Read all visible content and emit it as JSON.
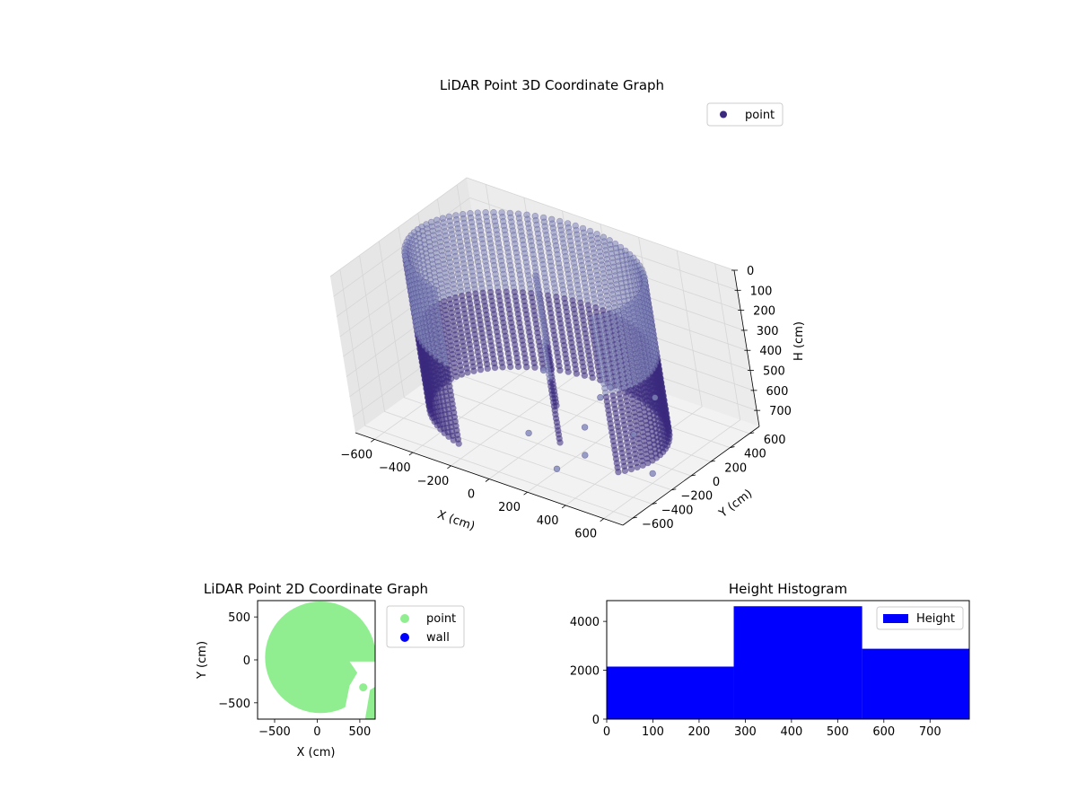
{
  "colors": {
    "point3d": "#3b2a7e",
    "point3d_light": "#7f86b8",
    "point2d": "#90ee90",
    "wall": "#0000ff",
    "hist": "#0000ff",
    "pane": "#f2f2f2",
    "grid": "#d6d6d6"
  },
  "chart_data": [
    {
      "id": "lidar3d",
      "type": "scatter",
      "title": "LiDAR Point 3D Coordinate Graph",
      "xlabel": "X (cm)",
      "ylabel": "Y (cm)",
      "zlabel": "H (cm)",
      "legend": {
        "entries": [
          "point"
        ],
        "placement": "top-right"
      },
      "xlim": [
        -700,
        700
      ],
      "ylim": [
        -700,
        700
      ],
      "zlim": [
        0,
        780
      ],
      "z_inverted": true,
      "xticks": [
        "−600",
        "−400",
        "−200",
        "0",
        "200",
        "400",
        "600"
      ],
      "yticks": [
        "−600",
        "−400",
        "−200",
        "0",
        "200",
        "400",
        "600"
      ],
      "zticks": [
        "0",
        "100",
        "200",
        "300",
        "400",
        "500",
        "600",
        "700"
      ],
      "xtick_values": [
        -600,
        -400,
        -200,
        0,
        200,
        400,
        600
      ],
      "ytick_values": [
        -600,
        -400,
        -200,
        0,
        200,
        400,
        600
      ],
      "ztick_values": [
        0,
        100,
        200,
        300,
        400,
        500,
        600,
        700
      ],
      "shape": {
        "wall_radius": 560,
        "wall_center": [
          -60,
          40
        ],
        "wall_gap_angles_deg": [
          250,
          330
        ],
        "height_range": [
          0,
          780
        ]
      },
      "scattered_points": [
        [
          350,
          -620,
          150
        ],
        [
          480,
          -540,
          420
        ],
        [
          520,
          -420,
          300
        ],
        [
          600,
          -300,
          500
        ],
        [
          640,
          -250,
          700
        ],
        [
          420,
          -480,
          600
        ],
        [
          560,
          -380,
          250
        ],
        [
          300,
          -560,
          680
        ],
        [
          660,
          -150,
          350
        ],
        [
          200,
          -600,
          520
        ]
      ],
      "grid": true
    },
    {
      "id": "lidar2d",
      "type": "scatter",
      "title": "LiDAR Point 2D Coordinate Graph",
      "xlabel": "X (cm)",
      "ylabel": "Y (cm)",
      "legend": {
        "entries": [
          "point",
          "wall"
        ],
        "placement": "right-outside"
      },
      "xlim": [
        -700,
        680
      ],
      "ylim": [
        -690,
        690
      ],
      "xticks": [
        "−500",
        "0",
        "500"
      ],
      "yticks": [
        "−500",
        "0",
        "500"
      ],
      "xtick_values": [
        -500,
        0,
        500
      ],
      "ytick_values": [
        -500,
        0,
        500
      ],
      "series": [
        {
          "name": "point",
          "region": "disk",
          "center": [
            80,
            30
          ],
          "radius": 650
        },
        {
          "name": "wall",
          "values": []
        }
      ],
      "grid": false
    },
    {
      "id": "height_hist",
      "type": "bar",
      "title": "Height Histogram",
      "legend": {
        "entries": [
          "Height"
        ],
        "placement": "top-right"
      },
      "xlim": [
        0,
        785
      ],
      "ylim": [
        0,
        4850
      ],
      "xticks": [
        "0",
        "100",
        "200",
        "300",
        "400",
        "500",
        "600",
        "700"
      ],
      "yticks": [
        "0",
        "2000",
        "4000"
      ],
      "xtick_values": [
        0,
        100,
        200,
        300,
        400,
        500,
        600,
        700
      ],
      "ytick_values": [
        0,
        2000,
        4000
      ],
      "bins": [
        {
          "start": 0,
          "end": 275,
          "count": 2150
        },
        {
          "start": 275,
          "end": 553,
          "count": 4620
        },
        {
          "start": 553,
          "end": 785,
          "count": 2880
        }
      ],
      "series": [
        {
          "name": "Height"
        }
      ]
    }
  ]
}
